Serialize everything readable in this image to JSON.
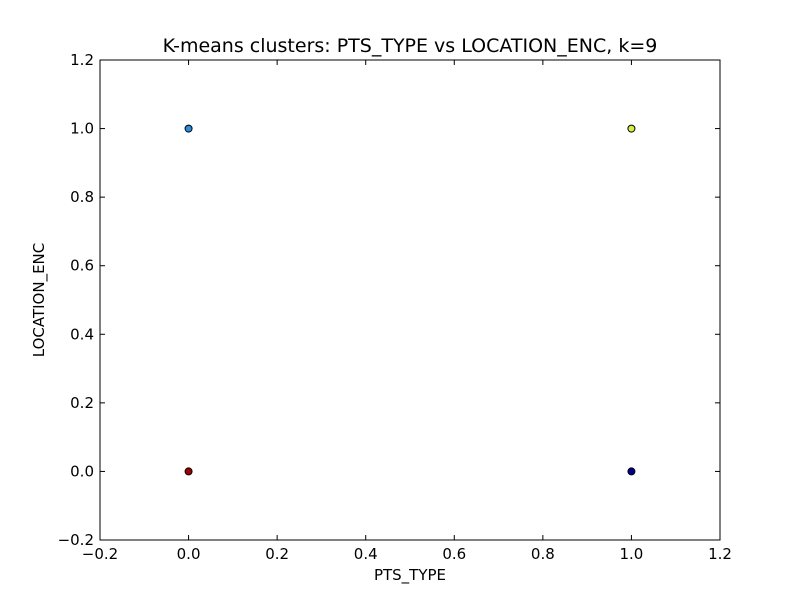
{
  "chart_data": {
    "type": "scatter",
    "title": "K-means clusters: PTS_TYPE vs LOCATION_ENC, k=9",
    "xlabel": "PTS_TYPE",
    "ylabel": "LOCATION_ENC",
    "xlim": [
      -0.2,
      1.2
    ],
    "ylim": [
      -0.2,
      1.2
    ],
    "xticks": [
      -0.2,
      0.0,
      0.2,
      0.4,
      0.6,
      0.8,
      1.0,
      1.2
    ],
    "yticks": [
      -0.2,
      0.0,
      0.2,
      0.4,
      0.6,
      0.8,
      1.0,
      1.2
    ],
    "xtick_labels": [
      "−0.2",
      "0.0",
      "0.2",
      "0.4",
      "0.6",
      "0.8",
      "1.0",
      "1.2"
    ],
    "ytick_labels": [
      "−0.2",
      "0.0",
      "0.2",
      "0.4",
      "0.6",
      "0.8",
      "1.0",
      "1.2"
    ],
    "grid": false,
    "legend": false,
    "points": [
      {
        "x": 0.0,
        "y": 1.0,
        "color": "#2b8ce0"
      },
      {
        "x": 1.0,
        "y": 1.0,
        "color": "#d4ef3c"
      },
      {
        "x": 0.0,
        "y": 0.0,
        "color": "#a00000"
      },
      {
        "x": 1.0,
        "y": 0.0,
        "color": "#00008f"
      }
    ]
  }
}
